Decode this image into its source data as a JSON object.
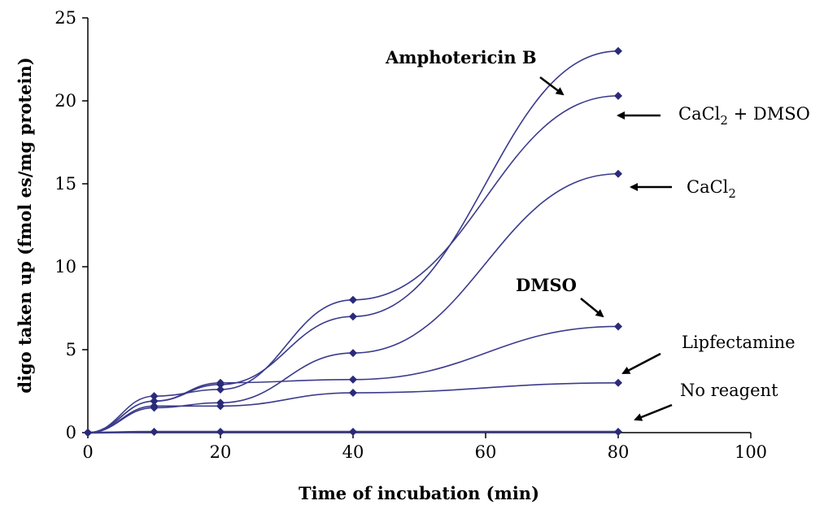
{
  "chart_data": {
    "type": "line",
    "xlabel": "Time of incubation (min)",
    "ylabel": "digo taken up (fmol es/mg protein)",
    "xlim": [
      0,
      100
    ],
    "ylim": [
      0,
      25
    ],
    "xticks": [
      0,
      20,
      40,
      60,
      80,
      100
    ],
    "yticks": [
      0,
      5,
      10,
      15,
      20,
      25
    ],
    "grid": false,
    "line_color": "#3b3b8c",
    "marker_color": "#2a2a7a",
    "series": [
      {
        "name": "Amphotericin B",
        "x": [
          0,
          10,
          20,
          40,
          80
        ],
        "y": [
          0,
          1.9,
          2.9,
          7.0,
          23.0
        ]
      },
      {
        "name": "CaCl2 + DMSO",
        "x": [
          0,
          10,
          20,
          40,
          80
        ],
        "y": [
          0,
          2.2,
          2.6,
          8.0,
          20.3
        ]
      },
      {
        "name": "CaCl2",
        "x": [
          0,
          10,
          20,
          40,
          80
        ],
        "y": [
          0,
          1.5,
          1.8,
          4.8,
          15.6
        ]
      },
      {
        "name": "DMSO",
        "x": [
          0,
          10,
          20,
          40,
          80
        ],
        "y": [
          0,
          1.9,
          3.0,
          3.2,
          6.4
        ]
      },
      {
        "name": "Lipfectamine",
        "x": [
          0,
          10,
          20,
          40,
          80
        ],
        "y": [
          0,
          1.6,
          1.6,
          2.4,
          3.0
        ]
      },
      {
        "name": "No reagent",
        "x": [
          0,
          10,
          20,
          40,
          80
        ],
        "y": [
          0,
          0.05,
          0.05,
          0.05,
          0.05
        ]
      }
    ],
    "annotations": {
      "amph": "Amphotericin B",
      "cacl_dmso_pre": "CaCl",
      "cacl_dmso_sub": "2",
      "cacl_dmso_post": " + DMSO",
      "cacl_pre": "CaCl",
      "cacl_sub": "2",
      "dmso": "DMSO",
      "lipf": "Lipfectamine",
      "noreag": "No reagent"
    }
  }
}
